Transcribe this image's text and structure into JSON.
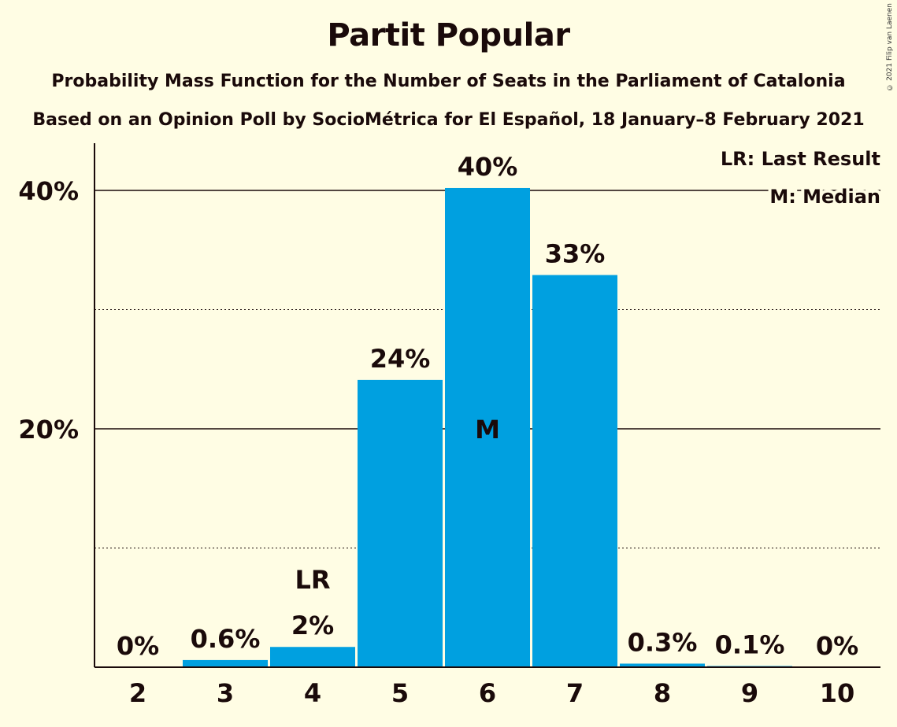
{
  "copyright": "© 2021 Filip van Laenen",
  "chart_data": {
    "type": "bar",
    "title": "Partit Popular",
    "subtitle": "Probability Mass Function for the Number of Seats in the Parliament of Catalonia",
    "subtitle2": "Based on an Opinion Poll by SocioMétrica for El Español, 18 January–8 February 2021",
    "categories": [
      "2",
      "3",
      "4",
      "5",
      "6",
      "7",
      "8",
      "9",
      "10"
    ],
    "values": [
      0,
      0.6,
      1.7,
      24.1,
      40.2,
      32.9,
      0.3,
      0.1,
      0
    ],
    "value_labels": [
      "0%",
      "0.6%",
      "2%",
      "24%",
      "40%",
      "33%",
      "0.3%",
      "0.1%",
      "0%"
    ],
    "last_result_category": "4",
    "last_result_label": "LR",
    "median_category": "6",
    "median_label": "M",
    "ylim": [
      0,
      44
    ],
    "yticks": [
      {
        "value": 20,
        "label": "20%"
      },
      {
        "value": 40,
        "label": "40%"
      }
    ],
    "minor_gridlines": [
      10,
      30
    ],
    "legend": [
      "LR: Last Result",
      "M: Median"
    ],
    "legend_position": "top-right",
    "bar_color": "#00A0E0"
  }
}
